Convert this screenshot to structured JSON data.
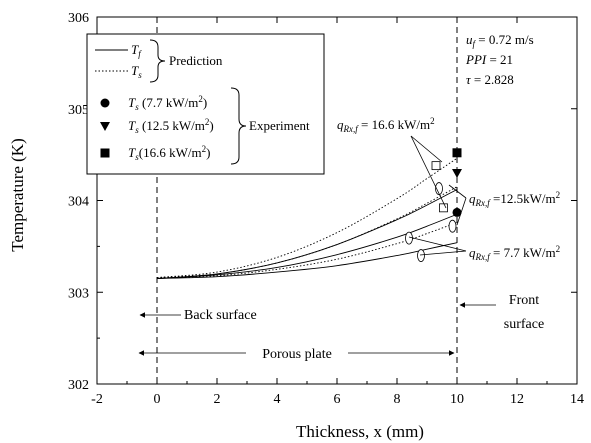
{
  "chart_data": {
    "type": "line",
    "title": "",
    "xlabel": "Thickness, x (mm)",
    "ylabel": "Temperature (K)",
    "xlim": [
      -2,
      14
    ],
    "ylim": [
      302,
      306
    ],
    "x_ticks": [
      -2,
      0,
      2,
      4,
      6,
      8,
      10,
      12,
      14
    ],
    "y_ticks": [
      302,
      303,
      304,
      305,
      306
    ],
    "legend": {
      "position": "top-left",
      "entries": [
        {
          "label": "T_f",
          "style": "solid"
        },
        {
          "label": "T_s",
          "style": "dotted"
        },
        {
          "label": "T_s (7.7 kW/m²)",
          "marker": "circle"
        },
        {
          "label": "T_s (12.5 kW/m²)",
          "marker": "triangle-down"
        },
        {
          "label": "T_s(16.6 kW/m²)",
          "marker": "square"
        }
      ],
      "group_labels": [
        "Prediction",
        "Experiment"
      ]
    },
    "conditions": [
      "u_f = 0.72 m/s",
      "PPI = 21",
      "τ = 2.828"
    ],
    "series": [
      {
        "name": "T_f q=7.7",
        "style": "solid",
        "x": [
          0,
          2,
          4,
          6,
          8,
          9,
          10
        ],
        "y": [
          303.15,
          303.17,
          303.22,
          303.29,
          303.4,
          303.47,
          303.54
        ]
      },
      {
        "name": "T_s q=7.7",
        "style": "dotted",
        "x": [
          0,
          2,
          4,
          6,
          8,
          9,
          10
        ],
        "y": [
          303.16,
          303.18,
          303.25,
          303.36,
          303.53,
          303.64,
          303.76
        ]
      },
      {
        "name": "T_f q=12.5",
        "style": "solid",
        "x": [
          0,
          2,
          4,
          6,
          8,
          9,
          10
        ],
        "y": [
          303.15,
          303.19,
          303.27,
          303.41,
          303.6,
          303.72,
          303.85
        ]
      },
      {
        "name": "T_s q=12.5",
        "style": "dotted",
        "x": [
          0,
          2,
          4,
          6,
          8,
          9,
          10
        ],
        "y": [
          303.16,
          303.2,
          303.32,
          303.52,
          303.8,
          303.97,
          304.15
        ]
      },
      {
        "name": "T_f q=16.6",
        "style": "solid",
        "x": [
          0,
          2,
          4,
          6,
          8,
          9,
          10
        ],
        "y": [
          303.15,
          303.2,
          303.32,
          303.52,
          303.79,
          303.95,
          304.12
        ]
      },
      {
        "name": "T_s q=16.6",
        "style": "dotted",
        "x": [
          0,
          2,
          4,
          6,
          8,
          9,
          10
        ],
        "y": [
          303.16,
          303.22,
          303.38,
          303.65,
          304.02,
          304.24,
          304.46
        ]
      }
    ],
    "experiment_points": [
      {
        "marker": "circle",
        "x": 10,
        "y": 303.87
      },
      {
        "marker": "triangle-down",
        "x": 10,
        "y": 304.3
      },
      {
        "marker": "square",
        "x": 10,
        "y": 304.52
      }
    ],
    "callout_markers": [
      {
        "shape": "square",
        "x": 9.3,
        "y": 304.38
      },
      {
        "shape": "square",
        "x": 9.55,
        "y": 303.92
      },
      {
        "shape": "ellipse",
        "x": 9.4,
        "y": 304.13
      },
      {
        "shape": "ellipse",
        "x": 9.85,
        "y": 303.72
      },
      {
        "shape": "ellipse",
        "x": 8.4,
        "y": 303.59
      },
      {
        "shape": "ellipse",
        "x": 8.8,
        "y": 303.4
      }
    ],
    "annotations": {
      "q16": "q_Rx,f = 16.6 kW/m²",
      "q12": "q_Rx,f =12.5kW/m²",
      "q7": "q_Rx,f = 7.7 kW/m²",
      "back_surface": "Back surface",
      "front_surface": [
        "Front",
        "surface"
      ],
      "porous_plate": "Porous plate"
    }
  }
}
